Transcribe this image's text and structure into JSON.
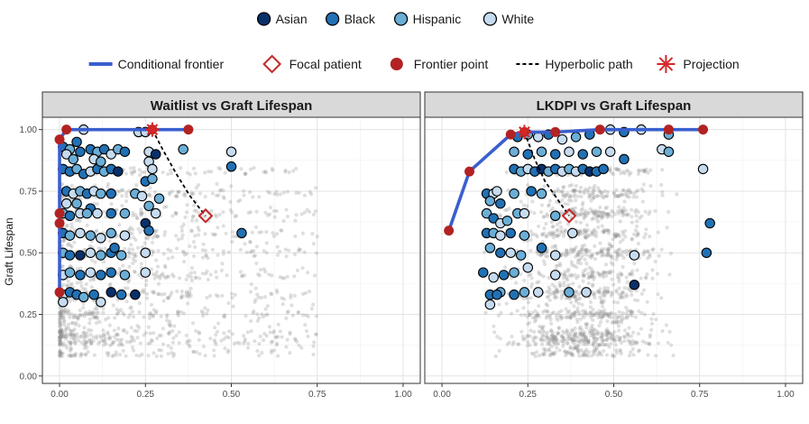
{
  "legend_race": {
    "items": [
      {
        "label": "Asian",
        "color": "#08306b"
      },
      {
        "label": "Black",
        "color": "#2171b5"
      },
      {
        "label": "Hispanic",
        "color": "#6baed6"
      },
      {
        "label": "White",
        "color": "#c6dbef"
      }
    ]
  },
  "legend_lines": {
    "items": [
      {
        "label": "Conditional frontier",
        "kind": "line",
        "color": "#3a5fcd"
      },
      {
        "label": "Focal patient",
        "kind": "diamond",
        "color": "#c62828"
      },
      {
        "label": "Frontier point",
        "kind": "dot",
        "color": "#b22222"
      },
      {
        "label": "Hyperbolic path",
        "kind": "dashed",
        "color": "#000000"
      },
      {
        "label": "Projection",
        "kind": "asterisk",
        "color": "#d62728"
      }
    ]
  },
  "chart_data": [
    {
      "type": "scatter",
      "title": "Waitlist vs Graft Lifespan",
      "ylabel": "Graft Lifespan",
      "xlim": [
        -0.05,
        1.05
      ],
      "ylim": [
        -0.03,
        1.05
      ],
      "xticks": [
        "0.00",
        "0.25",
        "0.50",
        "0.75",
        "1.00"
      ],
      "yticks": [
        "0.00",
        "0.25",
        "0.50",
        "0.75",
        "1.00"
      ],
      "frontier": {
        "x": [
          0.0,
          0.0,
          0.0,
          0.0,
          0.0,
          0.02,
          0.27,
          0.375
        ],
        "y": [
          0.34,
          0.5,
          0.62,
          0.66,
          0.96,
          1.0,
          1.0,
          1.0
        ]
      },
      "frontier_points": {
        "x": [
          0.0,
          0.0,
          0.0,
          0.0,
          0.02,
          0.27,
          0.375
        ],
        "y": [
          0.34,
          0.62,
          0.66,
          0.96,
          1.0,
          1.0,
          1.0
        ]
      },
      "focal_patient": {
        "x": 0.425,
        "y": 0.65
      },
      "projection": {
        "x": 0.27,
        "y": 1.0
      },
      "hyperbolic_path": {
        "x": [
          0.27,
          0.3,
          0.34,
          0.38,
          0.425
        ],
        "y": [
          1.0,
          0.92,
          0.82,
          0.73,
          0.65
        ]
      },
      "race_points": [
        {
          "x": 0.01,
          "y": 0.93,
          "race": "Black"
        },
        {
          "x": 0.03,
          "y": 0.92,
          "race": "Hispanic"
        },
        {
          "x": 0.05,
          "y": 0.95,
          "race": "Black"
        },
        {
          "x": 0.07,
          "y": 1.0,
          "race": "White"
        },
        {
          "x": 0.02,
          "y": 0.9,
          "race": "White"
        },
        {
          "x": 0.04,
          "y": 0.88,
          "race": "Hispanic"
        },
        {
          "x": 0.06,
          "y": 0.91,
          "race": "Black"
        },
        {
          "x": 0.09,
          "y": 0.92,
          "race": "Black"
        },
        {
          "x": 0.11,
          "y": 0.91,
          "race": "Hispanic"
        },
        {
          "x": 0.13,
          "y": 0.92,
          "race": "Black"
        },
        {
          "x": 0.15,
          "y": 0.9,
          "race": "White"
        },
        {
          "x": 0.17,
          "y": 0.92,
          "race": "Hispanic"
        },
        {
          "x": 0.19,
          "y": 0.91,
          "race": "Black"
        },
        {
          "x": 0.1,
          "y": 0.88,
          "race": "White"
        },
        {
          "x": 0.23,
          "y": 0.99,
          "race": "White"
        },
        {
          "x": 0.25,
          "y": 0.99,
          "race": "White"
        },
        {
          "x": 0.26,
          "y": 0.91,
          "race": "White"
        },
        {
          "x": 0.28,
          "y": 0.9,
          "race": "Asian"
        },
        {
          "x": 0.36,
          "y": 0.92,
          "race": "Hispanic"
        },
        {
          "x": 0.01,
          "y": 0.84,
          "race": "Black"
        },
        {
          "x": 0.03,
          "y": 0.83,
          "race": "Black"
        },
        {
          "x": 0.05,
          "y": 0.84,
          "race": "Hispanic"
        },
        {
          "x": 0.07,
          "y": 0.82,
          "race": "Black"
        },
        {
          "x": 0.09,
          "y": 0.83,
          "race": "White"
        },
        {
          "x": 0.11,
          "y": 0.84,
          "race": "Black"
        },
        {
          "x": 0.13,
          "y": 0.83,
          "race": "Hispanic"
        },
        {
          "x": 0.15,
          "y": 0.84,
          "race": "Black"
        },
        {
          "x": 0.17,
          "y": 0.83,
          "race": "Asian"
        },
        {
          "x": 0.12,
          "y": 0.87,
          "race": "Hispanic"
        },
        {
          "x": 0.26,
          "y": 0.87,
          "race": "White"
        },
        {
          "x": 0.27,
          "y": 0.84,
          "race": "White"
        },
        {
          "x": 0.25,
          "y": 0.79,
          "race": "Black"
        },
        {
          "x": 0.27,
          "y": 0.8,
          "race": "Hispanic"
        },
        {
          "x": 0.5,
          "y": 0.85,
          "race": "Black"
        },
        {
          "x": 0.5,
          "y": 0.91,
          "race": "White"
        },
        {
          "x": 0.02,
          "y": 0.75,
          "race": "Black"
        },
        {
          "x": 0.04,
          "y": 0.74,
          "race": "White"
        },
        {
          "x": 0.06,
          "y": 0.75,
          "race": "Hispanic"
        },
        {
          "x": 0.08,
          "y": 0.74,
          "race": "Black"
        },
        {
          "x": 0.1,
          "y": 0.75,
          "race": "White"
        },
        {
          "x": 0.12,
          "y": 0.74,
          "race": "Hispanic"
        },
        {
          "x": 0.15,
          "y": 0.74,
          "race": "Black"
        },
        {
          "x": 0.22,
          "y": 0.74,
          "race": "Hispanic"
        },
        {
          "x": 0.24,
          "y": 0.73,
          "race": "White"
        },
        {
          "x": 0.29,
          "y": 0.72,
          "race": "Hispanic"
        },
        {
          "x": 0.02,
          "y": 0.7,
          "race": "White"
        },
        {
          "x": 0.05,
          "y": 0.7,
          "race": "Hispanic"
        },
        {
          "x": 0.09,
          "y": 0.68,
          "race": "Black"
        },
        {
          "x": 0.26,
          "y": 0.69,
          "race": "Hispanic"
        },
        {
          "x": 0.01,
          "y": 0.66,
          "race": "Hispanic"
        },
        {
          "x": 0.03,
          "y": 0.65,
          "race": "Black"
        },
        {
          "x": 0.06,
          "y": 0.66,
          "race": "White"
        },
        {
          "x": 0.08,
          "y": 0.66,
          "race": "Hispanic"
        },
        {
          "x": 0.11,
          "y": 0.66,
          "race": "White"
        },
        {
          "x": 0.15,
          "y": 0.66,
          "race": "Black"
        },
        {
          "x": 0.19,
          "y": 0.66,
          "race": "Hispanic"
        },
        {
          "x": 0.28,
          "y": 0.66,
          "race": "White"
        },
        {
          "x": 0.25,
          "y": 0.62,
          "race": "Asian"
        },
        {
          "x": 0.26,
          "y": 0.59,
          "race": "Black"
        },
        {
          "x": 0.53,
          "y": 0.58,
          "race": "Black"
        },
        {
          "x": 0.01,
          "y": 0.58,
          "race": "Black"
        },
        {
          "x": 0.03,
          "y": 0.57,
          "race": "Hispanic"
        },
        {
          "x": 0.06,
          "y": 0.58,
          "race": "White"
        },
        {
          "x": 0.09,
          "y": 0.57,
          "race": "Hispanic"
        },
        {
          "x": 0.12,
          "y": 0.56,
          "race": "White"
        },
        {
          "x": 0.15,
          "y": 0.58,
          "race": "Hispanic"
        },
        {
          "x": 0.19,
          "y": 0.57,
          "race": "White"
        },
        {
          "x": 0.01,
          "y": 0.5,
          "race": "Hispanic"
        },
        {
          "x": 0.03,
          "y": 0.49,
          "race": "Black"
        },
        {
          "x": 0.06,
          "y": 0.49,
          "race": "Asian"
        },
        {
          "x": 0.09,
          "y": 0.5,
          "race": "White"
        },
        {
          "x": 0.12,
          "y": 0.49,
          "race": "Hispanic"
        },
        {
          "x": 0.15,
          "y": 0.5,
          "race": "Black"
        },
        {
          "x": 0.16,
          "y": 0.52,
          "race": "Black"
        },
        {
          "x": 0.18,
          "y": 0.49,
          "race": "Hispanic"
        },
        {
          "x": 0.25,
          "y": 0.5,
          "race": "White"
        },
        {
          "x": 0.01,
          "y": 0.41,
          "race": "White"
        },
        {
          "x": 0.03,
          "y": 0.42,
          "race": "Hispanic"
        },
        {
          "x": 0.06,
          "y": 0.41,
          "race": "Black"
        },
        {
          "x": 0.09,
          "y": 0.42,
          "race": "White"
        },
        {
          "x": 0.12,
          "y": 0.41,
          "race": "Black"
        },
        {
          "x": 0.15,
          "y": 0.42,
          "race": "Black"
        },
        {
          "x": 0.19,
          "y": 0.41,
          "race": "Hispanic"
        },
        {
          "x": 0.25,
          "y": 0.42,
          "race": "White"
        },
        {
          "x": 0.01,
          "y": 0.33,
          "race": "White"
        },
        {
          "x": 0.03,
          "y": 0.34,
          "race": "Black"
        },
        {
          "x": 0.05,
          "y": 0.33,
          "race": "Black"
        },
        {
          "x": 0.07,
          "y": 0.32,
          "race": "Hispanic"
        },
        {
          "x": 0.1,
          "y": 0.33,
          "race": "Black"
        },
        {
          "x": 0.15,
          "y": 0.34,
          "race": "Asian"
        },
        {
          "x": 0.18,
          "y": 0.33,
          "race": "Black"
        },
        {
          "x": 0.22,
          "y": 0.33,
          "race": "Asian"
        },
        {
          "x": 0.12,
          "y": 0.3,
          "race": "White"
        },
        {
          "x": 0.01,
          "y": 0.3,
          "race": "White"
        }
      ]
    },
    {
      "type": "scatter",
      "title": "LKDPI vs Graft Lifespan",
      "ylabel": "",
      "xlim": [
        -0.05,
        1.05
      ],
      "ylim": [
        -0.03,
        1.05
      ],
      "xticks": [
        "0.00",
        "0.25",
        "0.50",
        "0.75",
        "1.00"
      ],
      "yticks": [
        "0.00",
        "0.25",
        "0.50",
        "0.75",
        "1.00"
      ],
      "frontier": {
        "x": [
          0.02,
          0.08,
          0.2,
          0.24,
          0.33,
          0.46,
          0.66,
          0.76
        ],
        "y": [
          0.59,
          0.83,
          0.98,
          0.99,
          0.99,
          1.0,
          1.0,
          1.0
        ]
      },
      "frontier_points": {
        "x": [
          0.02,
          0.08,
          0.2,
          0.24,
          0.33,
          0.46,
          0.66,
          0.76
        ],
        "y": [
          0.59,
          0.83,
          0.98,
          0.99,
          0.99,
          1.0,
          1.0,
          1.0
        ]
      },
      "focal_patient": {
        "x": 0.37,
        "y": 0.65
      },
      "projection": {
        "x": 0.24,
        "y": 0.99
      },
      "hyperbolic_path": {
        "x": [
          0.24,
          0.27,
          0.3,
          0.34,
          0.37
        ],
        "y": [
          0.99,
          0.88,
          0.79,
          0.71,
          0.65
        ]
      },
      "race_points": [
        {
          "x": 0.22,
          "y": 0.97,
          "race": "Black"
        },
        {
          "x": 0.25,
          "y": 0.98,
          "race": "Hispanic"
        },
        {
          "x": 0.28,
          "y": 0.97,
          "race": "White"
        },
        {
          "x": 0.31,
          "y": 0.98,
          "race": "Black"
        },
        {
          "x": 0.35,
          "y": 0.96,
          "race": "White"
        },
        {
          "x": 0.39,
          "y": 0.97,
          "race": "Hispanic"
        },
        {
          "x": 0.43,
          "y": 0.98,
          "race": "Black"
        },
        {
          "x": 0.49,
          "y": 1.0,
          "race": "White"
        },
        {
          "x": 0.53,
          "y": 0.99,
          "race": "Black"
        },
        {
          "x": 0.58,
          "y": 1.0,
          "race": "White"
        },
        {
          "x": 0.66,
          "y": 0.98,
          "race": "Hispanic"
        },
        {
          "x": 0.21,
          "y": 0.91,
          "race": "Hispanic"
        },
        {
          "x": 0.25,
          "y": 0.9,
          "race": "Black"
        },
        {
          "x": 0.29,
          "y": 0.91,
          "race": "Hispanic"
        },
        {
          "x": 0.33,
          "y": 0.9,
          "race": "Black"
        },
        {
          "x": 0.37,
          "y": 0.91,
          "race": "White"
        },
        {
          "x": 0.41,
          "y": 0.9,
          "race": "Black"
        },
        {
          "x": 0.45,
          "y": 0.91,
          "race": "Hispanic"
        },
        {
          "x": 0.49,
          "y": 0.91,
          "race": "White"
        },
        {
          "x": 0.53,
          "y": 0.88,
          "race": "Black"
        },
        {
          "x": 0.64,
          "y": 0.92,
          "race": "White"
        },
        {
          "x": 0.66,
          "y": 0.91,
          "race": "Hispanic"
        },
        {
          "x": 0.21,
          "y": 0.84,
          "race": "Black"
        },
        {
          "x": 0.23,
          "y": 0.83,
          "race": "Hispanic"
        },
        {
          "x": 0.25,
          "y": 0.84,
          "race": "White"
        },
        {
          "x": 0.27,
          "y": 0.83,
          "race": "Black"
        },
        {
          "x": 0.29,
          "y": 0.84,
          "race": "Asian"
        },
        {
          "x": 0.31,
          "y": 0.83,
          "race": "Hispanic"
        },
        {
          "x": 0.33,
          "y": 0.84,
          "race": "Black"
        },
        {
          "x": 0.35,
          "y": 0.83,
          "race": "White"
        },
        {
          "x": 0.37,
          "y": 0.84,
          "race": "Hispanic"
        },
        {
          "x": 0.39,
          "y": 0.83,
          "race": "White"
        },
        {
          "x": 0.41,
          "y": 0.84,
          "race": "Black"
        },
        {
          "x": 0.43,
          "y": 0.83,
          "race": "Asian"
        },
        {
          "x": 0.45,
          "y": 0.83,
          "race": "Black"
        },
        {
          "x": 0.47,
          "y": 0.84,
          "race": "Black"
        },
        {
          "x": 0.76,
          "y": 0.84,
          "race": "White"
        },
        {
          "x": 0.13,
          "y": 0.74,
          "race": "Black"
        },
        {
          "x": 0.15,
          "y": 0.74,
          "race": "White"
        },
        {
          "x": 0.16,
          "y": 0.75,
          "race": "White"
        },
        {
          "x": 0.21,
          "y": 0.74,
          "race": "Hispanic"
        },
        {
          "x": 0.26,
          "y": 0.75,
          "race": "Black"
        },
        {
          "x": 0.29,
          "y": 0.74,
          "race": "Hispanic"
        },
        {
          "x": 0.14,
          "y": 0.71,
          "race": "Hispanic"
        },
        {
          "x": 0.17,
          "y": 0.7,
          "race": "Black"
        },
        {
          "x": 0.22,
          "y": 0.66,
          "race": "Hispanic"
        },
        {
          "x": 0.24,
          "y": 0.66,
          "race": "White"
        },
        {
          "x": 0.33,
          "y": 0.65,
          "race": "Hispanic"
        },
        {
          "x": 0.13,
          "y": 0.66,
          "race": "Hispanic"
        },
        {
          "x": 0.15,
          "y": 0.64,
          "race": "Black"
        },
        {
          "x": 0.17,
          "y": 0.62,
          "race": "White"
        },
        {
          "x": 0.19,
          "y": 0.63,
          "race": "Hispanic"
        },
        {
          "x": 0.13,
          "y": 0.58,
          "race": "Black"
        },
        {
          "x": 0.15,
          "y": 0.58,
          "race": "Hispanic"
        },
        {
          "x": 0.17,
          "y": 0.57,
          "race": "White"
        },
        {
          "x": 0.2,
          "y": 0.58,
          "race": "Black"
        },
        {
          "x": 0.24,
          "y": 0.57,
          "race": "Hispanic"
        },
        {
          "x": 0.38,
          "y": 0.58,
          "race": "White"
        },
        {
          "x": 0.78,
          "y": 0.62,
          "race": "Black"
        },
        {
          "x": 0.14,
          "y": 0.52,
          "race": "Hispanic"
        },
        {
          "x": 0.17,
          "y": 0.5,
          "race": "Black"
        },
        {
          "x": 0.2,
          "y": 0.5,
          "race": "White"
        },
        {
          "x": 0.23,
          "y": 0.49,
          "race": "Hispanic"
        },
        {
          "x": 0.29,
          "y": 0.52,
          "race": "Black"
        },
        {
          "x": 0.33,
          "y": 0.49,
          "race": "White"
        },
        {
          "x": 0.56,
          "y": 0.49,
          "race": "White"
        },
        {
          "x": 0.77,
          "y": 0.5,
          "race": "Black"
        },
        {
          "x": 0.12,
          "y": 0.42,
          "race": "Black"
        },
        {
          "x": 0.15,
          "y": 0.4,
          "race": "White"
        },
        {
          "x": 0.18,
          "y": 0.41,
          "race": "Black"
        },
        {
          "x": 0.21,
          "y": 0.42,
          "race": "Hispanic"
        },
        {
          "x": 0.25,
          "y": 0.44,
          "race": "White"
        },
        {
          "x": 0.33,
          "y": 0.41,
          "race": "White"
        },
        {
          "x": 0.14,
          "y": 0.33,
          "race": "Black"
        },
        {
          "x": 0.17,
          "y": 0.34,
          "race": "Hispanic"
        },
        {
          "x": 0.21,
          "y": 0.33,
          "race": "Black"
        },
        {
          "x": 0.24,
          "y": 0.34,
          "race": "Hispanic"
        },
        {
          "x": 0.28,
          "y": 0.34,
          "race": "White"
        },
        {
          "x": 0.37,
          "y": 0.34,
          "race": "Hispanic"
        },
        {
          "x": 0.42,
          "y": 0.34,
          "race": "White"
        },
        {
          "x": 0.56,
          "y": 0.37,
          "race": "Asian"
        },
        {
          "x": 0.14,
          "y": 0.29,
          "race": "White"
        },
        {
          "x": 0.16,
          "y": 0.33,
          "race": "Black"
        }
      ]
    }
  ]
}
